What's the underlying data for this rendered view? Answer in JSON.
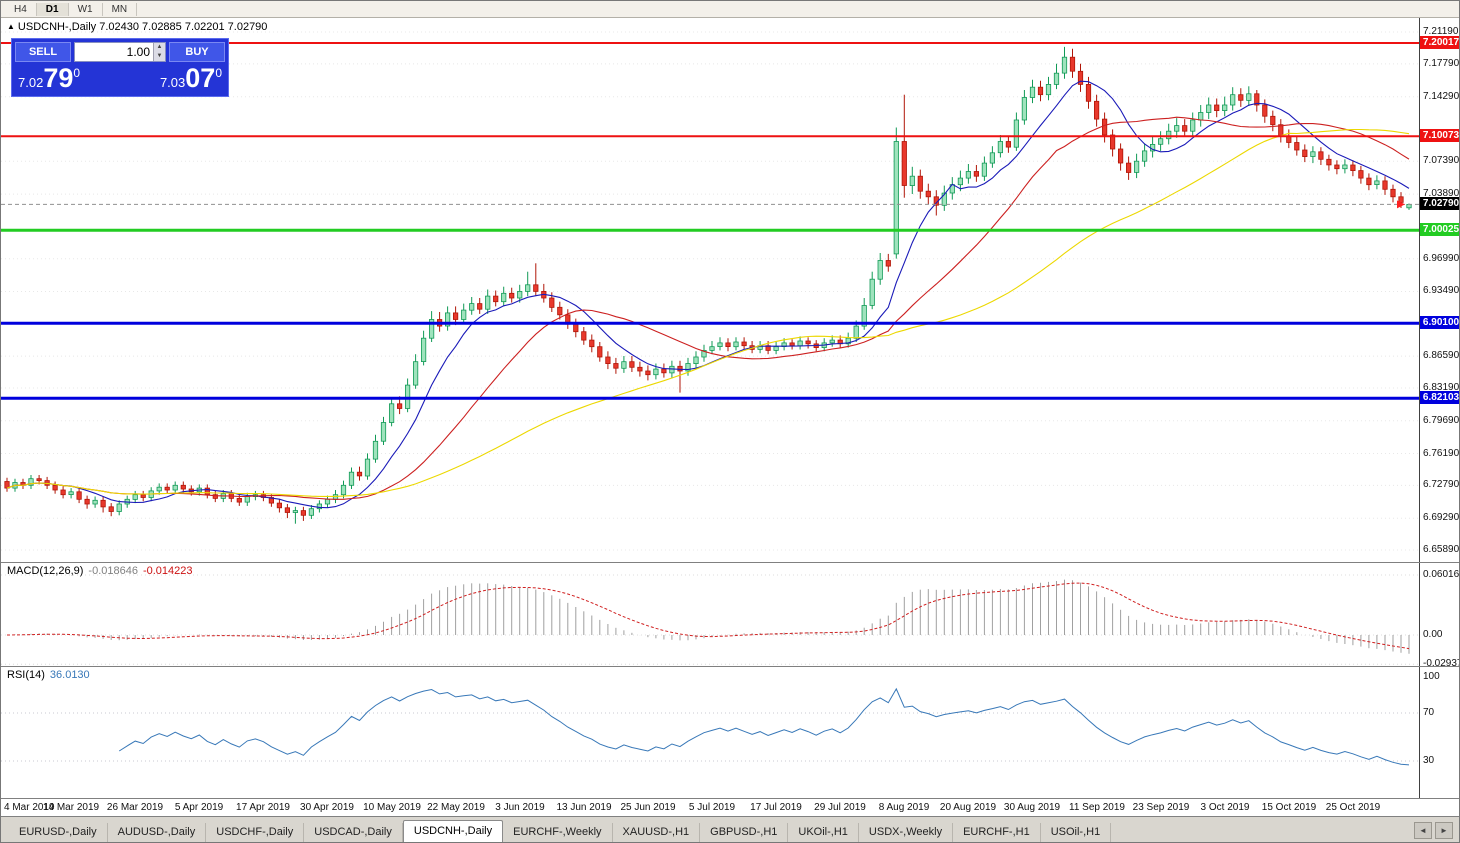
{
  "icons": {
    "symbol_arrow": "▲",
    "spinner_up": "▲",
    "spinner_down": "▼",
    "tab_scroll_left": "◄",
    "tab_scroll_right": "►"
  },
  "toolbar": {
    "timeframes": [
      "H4",
      "D1",
      "W1",
      "MN"
    ],
    "active_timeframe": "D1"
  },
  "chart": {
    "symbol_header": "USDCNH-,Daily 7.02430 7.02885 7.02201 7.02790",
    "ohlc": {
      "open": "7.02430",
      "high": "7.02885",
      "low": "7.02201",
      "close": "7.02790"
    }
  },
  "trade_panel": {
    "sell_label": "SELL",
    "buy_label": "BUY",
    "volume": "1.00",
    "sell_price": {
      "prefix": "7.02",
      "pips": "79",
      "frac": "0"
    },
    "buy_price": {
      "prefix": "7.03",
      "pips": "07",
      "frac": "0"
    }
  },
  "indicators": {
    "macd": {
      "header": "MACD(12,26,9)",
      "value1": "-0.018646",
      "value2": "-0.014223",
      "params": {
        "fast": 12,
        "slow": 26,
        "signal": 9
      },
      "axis": [
        {
          "label": "0.060161",
          "v": 0.060161
        },
        {
          "label": "0.00",
          "v": 0
        },
        {
          "label": "-0.029378",
          "v": -0.029378
        }
      ]
    },
    "rsi": {
      "header": "RSI(14)",
      "value": "36.0130",
      "period": 14,
      "axis": [
        {
          "label": "100",
          "v": 100
        },
        {
          "label": "70",
          "v": 70
        },
        {
          "label": "30",
          "v": 30
        }
      ]
    }
  },
  "price_axis": {
    "ticks": [
      {
        "label": "7.21190",
        "price": 7.2119
      },
      {
        "label": "7.17790",
        "price": 7.1779
      },
      {
        "label": "7.14290",
        "price": 7.1429
      },
      {
        "label": "7.07390",
        "price": 7.0739
      },
      {
        "label": "7.03890",
        "price": 7.0389
      },
      {
        "label": "6.96990",
        "price": 6.9699
      },
      {
        "label": "6.93490",
        "price": 6.9349
      },
      {
        "label": "6.86590",
        "price": 6.8659
      },
      {
        "label": "6.83190",
        "price": 6.8319
      },
      {
        "label": "6.79690",
        "price": 6.7969
      },
      {
        "label": "6.76190",
        "price": 6.7619
      },
      {
        "label": "6.72790",
        "price": 6.7279
      },
      {
        "label": "6.69290",
        "price": 6.6929
      },
      {
        "label": "6.65890",
        "price": 6.6589
      }
    ]
  },
  "hlines": [
    {
      "name": "resistance-7.20017",
      "label": "7.20017",
      "price": 7.20017,
      "color": "#ee1111",
      "width": 2
    },
    {
      "name": "resistance-7.10073",
      "label": "7.10073",
      "price": 7.10073,
      "color": "#ee1111",
      "width": 2
    },
    {
      "name": "support-7.00025",
      "label": "7.00025",
      "price": 7.00025,
      "color": "#22cc22",
      "width": 3
    },
    {
      "name": "support-6.90100",
      "label": "6.90100",
      "price": 6.901,
      "color": "#0000dd",
      "width": 3
    },
    {
      "name": "support-6.82103",
      "label": "6.82103",
      "price": 6.82103,
      "color": "#0000dd",
      "width": 3
    }
  ],
  "current_price": {
    "label": "7.02790",
    "price": 7.0279,
    "badge_bg": "#000000"
  },
  "colors": {
    "up_fill": "#9fe3bd",
    "up_stroke": "#119a56",
    "down_fill": "#e8382c",
    "down_stroke": "#b01608",
    "macd_hist": "#a0a0a0",
    "macd_signal": "#d02020",
    "rsi_line": "#3878b8",
    "grid": "#e8e8e8"
  },
  "tabs": {
    "active": "USDCNH-,Daily",
    "items": [
      "EURUSD-,Daily",
      "AUDUSD-,Daily",
      "USDCHF-,Daily",
      "USDCAD-,Daily",
      "USDCNH-,Daily",
      "EURCHF-,Weekly",
      "XAUUSD-,H1",
      "GBPUSD-,H1",
      "UKOil-,H1",
      "USDX-,Weekly",
      "EURCHF-,H1",
      "USOil-,H1"
    ]
  },
  "chart_data": {
    "type": "candlestick",
    "symbol": "USDCNH-",
    "timeframe": "Daily",
    "y_range": [
      6.6461,
      7.2269
    ],
    "x_label_every": 8,
    "x_labels": [
      "4 Mar 2019",
      "14 Mar 2019",
      "26 Mar 2019",
      "5 Apr 2019",
      "17 Apr 2019",
      "30 Apr 2019",
      "10 May 2019",
      "22 May 2019",
      "3 Jun 2019",
      "13 Jun 2019",
      "25 Jun 2019",
      "5 Jul 2019",
      "17 Jul 2019",
      "29 Jul 2019",
      "8 Aug 2019",
      "20 Aug 2019",
      "30 Aug 2019",
      "11 Sep 2019",
      "23 Sep 2019",
      "3 Oct 2019",
      "15 Oct 2019",
      "25 Oct 2019"
    ],
    "overlays": [
      {
        "name": "ma-fast",
        "type": "sma",
        "period": 8,
        "color": "#1a1ab8"
      },
      {
        "name": "ma-mid",
        "type": "sma",
        "period": 21,
        "color": "#cc2020"
      },
      {
        "name": "ma-slow",
        "type": "sma",
        "period": 50,
        "color": "#ecd800"
      }
    ],
    "candles": [
      [
        6.732,
        6.736,
        6.721,
        6.725
      ],
      [
        6.725,
        6.735,
        6.721,
        6.731
      ],
      [
        6.731,
        6.735,
        6.724,
        6.728
      ],
      [
        6.728,
        6.739,
        6.724,
        6.735
      ],
      [
        6.735,
        6.739,
        6.729,
        6.733
      ],
      [
        6.733,
        6.737,
        6.724,
        6.728
      ],
      [
        6.728,
        6.732,
        6.719,
        6.723
      ],
      [
        6.723,
        6.727,
        6.714,
        6.718
      ],
      [
        6.718,
        6.725,
        6.714,
        6.721
      ],
      [
        6.721,
        6.725,
        6.709,
        6.713
      ],
      [
        6.713,
        6.717,
        6.703,
        6.708
      ],
      [
        6.708,
        6.716,
        6.704,
        6.712
      ],
      [
        6.712,
        6.716,
        6.699,
        6.705
      ],
      [
        6.705,
        6.709,
        6.695,
        6.7
      ],
      [
        6.7,
        6.712,
        6.696,
        6.708
      ],
      [
        6.708,
        6.717,
        6.704,
        6.713
      ],
      [
        6.713,
        6.722,
        6.709,
        6.718
      ],
      [
        6.718,
        6.722,
        6.711,
        6.715
      ],
      [
        6.715,
        6.726,
        6.711,
        6.722
      ],
      [
        6.722,
        6.73,
        6.718,
        6.726
      ],
      [
        6.726,
        6.73,
        6.719,
        6.723
      ],
      [
        6.723,
        6.732,
        6.719,
        6.728
      ],
      [
        6.728,
        6.732,
        6.72,
        6.724
      ],
      [
        6.724,
        6.728,
        6.717,
        6.721
      ],
      [
        6.721,
        6.729,
        6.717,
        6.725
      ],
      [
        6.725,
        6.729,
        6.714,
        6.718
      ],
      [
        6.718,
        6.722,
        6.71,
        6.714
      ],
      [
        6.714,
        6.723,
        6.71,
        6.719
      ],
      [
        6.719,
        6.723,
        6.71,
        6.714
      ],
      [
        6.714,
        6.718,
        6.706,
        6.71
      ],
      [
        6.71,
        6.72,
        6.706,
        6.716
      ],
      [
        6.716,
        6.722,
        6.712,
        6.718
      ],
      [
        6.718,
        6.722,
        6.711,
        6.715
      ],
      [
        6.715,
        6.719,
        6.705,
        6.709
      ],
      [
        6.709,
        6.713,
        6.699,
        6.704
      ],
      [
        6.704,
        6.708,
        6.693,
        6.699
      ],
      [
        6.699,
        6.705,
        6.687,
        6.701
      ],
      [
        6.701,
        6.705,
        6.69,
        6.696
      ],
      [
        6.696,
        6.707,
        6.692,
        6.703
      ],
      [
        6.703,
        6.712,
        6.699,
        6.708
      ],
      [
        6.708,
        6.717,
        6.704,
        6.713
      ],
      [
        6.713,
        6.723,
        6.709,
        6.718
      ],
      [
        6.718,
        6.733,
        6.714,
        6.728
      ],
      [
        6.728,
        6.747,
        6.724,
        6.742
      ],
      [
        6.742,
        6.748,
        6.733,
        6.738
      ],
      [
        6.738,
        6.762,
        6.734,
        6.756
      ],
      [
        6.756,
        6.782,
        6.752,
        6.775
      ],
      [
        6.775,
        6.801,
        6.771,
        6.795
      ],
      [
        6.795,
        6.822,
        6.791,
        6.815
      ],
      [
        6.815,
        6.823,
        6.804,
        6.81
      ],
      [
        6.81,
        6.842,
        6.806,
        6.835
      ],
      [
        6.835,
        6.868,
        6.831,
        6.86
      ],
      [
        6.86,
        6.893,
        6.856,
        6.885
      ],
      [
        6.885,
        6.914,
        6.881,
        6.905
      ],
      [
        6.905,
        6.913,
        6.892,
        6.898
      ],
      [
        6.898,
        6.919,
        6.893,
        6.912
      ],
      [
        6.912,
        6.919,
        6.899,
        6.905
      ],
      [
        6.905,
        6.922,
        6.9,
        6.915
      ],
      [
        6.915,
        6.929,
        6.91,
        6.922
      ],
      [
        6.922,
        6.928,
        6.911,
        6.916
      ],
      [
        6.916,
        6.937,
        6.911,
        6.93
      ],
      [
        6.93,
        6.936,
        6.919,
        6.924
      ],
      [
        6.924,
        6.94,
        6.919,
        6.933
      ],
      [
        6.933,
        6.939,
        6.923,
        6.928
      ],
      [
        6.928,
        6.942,
        6.923,
        6.935
      ],
      [
        6.935,
        6.956,
        6.93,
        6.942
      ],
      [
        6.942,
        6.965,
        6.93,
        6.935
      ],
      [
        6.935,
        6.943,
        6.923,
        6.928
      ],
      [
        6.928,
        6.934,
        6.913,
        6.918
      ],
      [
        6.918,
        6.924,
        6.905,
        6.91
      ],
      [
        6.91,
        6.916,
        6.895,
        6.9
      ],
      [
        6.9,
        6.906,
        6.886,
        6.892
      ],
      [
        6.892,
        6.897,
        6.878,
        6.883
      ],
      [
        6.883,
        6.889,
        6.87,
        6.876
      ],
      [
        6.876,
        6.881,
        6.86,
        6.865
      ],
      [
        6.865,
        6.871,
        6.852,
        6.858
      ],
      [
        6.858,
        6.864,
        6.847,
        6.853
      ],
      [
        6.853,
        6.866,
        6.848,
        6.86
      ],
      [
        6.86,
        6.866,
        6.849,
        6.854
      ],
      [
        6.854,
        6.86,
        6.844,
        6.85
      ],
      [
        6.85,
        6.856,
        6.84,
        6.846
      ],
      [
        6.846,
        6.858,
        6.841,
        6.852
      ],
      [
        6.852,
        6.858,
        6.843,
        6.848
      ],
      [
        6.848,
        6.861,
        6.842,
        6.855
      ],
      [
        6.855,
        6.861,
        6.827,
        6.85
      ],
      [
        6.85,
        6.864,
        6.845,
        6.858
      ],
      [
        6.858,
        6.871,
        6.853,
        6.865
      ],
      [
        6.865,
        6.878,
        6.86,
        6.872
      ],
      [
        6.872,
        6.882,
        6.868,
        6.876
      ],
      [
        6.876,
        6.886,
        6.872,
        6.88
      ],
      [
        6.88,
        6.885,
        6.871,
        6.876
      ],
      [
        6.876,
        6.886,
        6.872,
        6.881
      ],
      [
        6.881,
        6.886,
        6.873,
        6.877
      ],
      [
        6.877,
        6.882,
        6.869,
        6.873
      ],
      [
        6.873,
        6.882,
        6.869,
        6.877
      ],
      [
        6.877,
        6.882,
        6.868,
        6.872
      ],
      [
        6.872,
        6.881,
        6.868,
        6.876
      ],
      [
        6.876,
        6.885,
        6.872,
        6.88
      ],
      [
        6.88,
        6.884,
        6.873,
        6.877
      ],
      [
        6.877,
        6.887,
        6.873,
        6.882
      ],
      [
        6.882,
        6.886,
        6.874,
        6.879
      ],
      [
        6.879,
        6.883,
        6.871,
        6.875
      ],
      [
        6.875,
        6.885,
        6.871,
        6.88
      ],
      [
        6.88,
        6.888,
        6.876,
        6.883
      ],
      [
        6.883,
        6.888,
        6.875,
        6.879
      ],
      [
        6.879,
        6.891,
        6.875,
        6.885
      ],
      [
        6.885,
        6.904,
        6.881,
        6.898
      ],
      [
        6.898,
        6.928,
        6.894,
        6.92
      ],
      [
        6.92,
        6.956,
        6.916,
        6.948
      ],
      [
        6.948,
        6.976,
        6.942,
        6.968
      ],
      [
        6.968,
        6.975,
        6.956,
        6.962
      ],
      [
        6.975,
        7.11,
        6.97,
        7.095
      ],
      [
        7.095,
        7.145,
        7.035,
        7.048
      ],
      [
        7.048,
        7.068,
        7.039,
        7.058
      ],
      [
        7.058,
        7.065,
        7.034,
        7.042
      ],
      [
        7.042,
        7.05,
        7.028,
        7.036
      ],
      [
        7.036,
        7.043,
        7.016,
        7.027
      ],
      [
        7.027,
        7.048,
        7.021,
        7.04
      ],
      [
        7.04,
        7.057,
        7.033,
        7.049
      ],
      [
        7.049,
        7.064,
        7.042,
        7.056
      ],
      [
        7.056,
        7.071,
        7.05,
        7.063
      ],
      [
        7.063,
        7.07,
        7.052,
        7.058
      ],
      [
        7.058,
        7.079,
        7.053,
        7.072
      ],
      [
        7.072,
        7.09,
        7.067,
        7.083
      ],
      [
        7.083,
        7.102,
        7.078,
        7.095
      ],
      [
        7.095,
        7.101,
        7.083,
        7.089
      ],
      [
        7.089,
        7.126,
        7.085,
        7.118
      ],
      [
        7.118,
        7.15,
        7.113,
        7.142
      ],
      [
        7.142,
        7.161,
        7.136,
        7.153
      ],
      [
        7.153,
        7.16,
        7.138,
        7.145
      ],
      [
        7.145,
        7.164,
        7.139,
        7.156
      ],
      [
        7.156,
        7.178,
        7.151,
        7.168
      ],
      [
        7.168,
        7.196,
        7.162,
        7.185
      ],
      [
        7.185,
        7.194,
        7.163,
        7.17
      ],
      [
        7.17,
        7.178,
        7.148,
        7.156
      ],
      [
        7.156,
        7.164,
        7.13,
        7.138
      ],
      [
        7.138,
        7.145,
        7.111,
        7.119
      ],
      [
        7.119,
        7.126,
        7.094,
        7.102
      ],
      [
        7.102,
        7.108,
        7.079,
        7.087
      ],
      [
        7.087,
        7.093,
        7.064,
        7.072
      ],
      [
        7.072,
        7.079,
        7.054,
        7.062
      ],
      [
        7.062,
        7.082,
        7.056,
        7.074
      ],
      [
        7.074,
        7.093,
        7.068,
        7.085
      ],
      [
        7.085,
        7.1,
        7.078,
        7.092
      ],
      [
        7.092,
        7.106,
        7.085,
        7.098
      ],
      [
        7.098,
        7.114,
        7.092,
        7.106
      ],
      [
        7.106,
        7.12,
        7.099,
        7.112
      ],
      [
        7.112,
        7.119,
        7.1,
        7.106
      ],
      [
        7.106,
        7.126,
        7.101,
        7.118
      ],
      [
        7.118,
        7.134,
        7.111,
        7.126
      ],
      [
        7.126,
        7.142,
        7.119,
        7.134
      ],
      [
        7.134,
        7.141,
        7.121,
        7.128
      ],
      [
        7.128,
        7.143,
        7.122,
        7.134
      ],
      [
        7.134,
        7.153,
        7.128,
        7.145
      ],
      [
        7.145,
        7.152,
        7.132,
        7.139
      ],
      [
        7.139,
        7.154,
        7.133,
        7.146
      ],
      [
        7.146,
        7.15,
        7.127,
        7.134
      ],
      [
        7.134,
        7.14,
        7.115,
        7.122
      ],
      [
        7.122,
        7.128,
        7.106,
        7.113
      ],
      [
        7.113,
        7.119,
        7.094,
        7.101
      ],
      [
        7.101,
        7.108,
        7.088,
        7.094
      ],
      [
        7.094,
        7.1,
        7.08,
        7.086
      ],
      [
        7.086,
        7.092,
        7.073,
        7.079
      ],
      [
        7.079,
        7.09,
        7.072,
        7.084
      ],
      [
        7.084,
        7.089,
        7.07,
        7.076
      ],
      [
        7.076,
        7.081,
        7.064,
        7.07
      ],
      [
        7.07,
        7.075,
        7.06,
        7.066
      ],
      [
        7.066,
        7.076,
        7.061,
        7.07
      ],
      [
        7.07,
        7.075,
        7.058,
        7.064
      ],
      [
        7.064,
        7.069,
        7.05,
        7.056
      ],
      [
        7.056,
        7.061,
        7.043,
        7.049
      ],
      [
        7.049,
        7.059,
        7.044,
        7.053
      ],
      [
        7.053,
        7.058,
        7.038,
        7.044
      ],
      [
        7.044,
        7.049,
        7.03,
        7.036
      ],
      [
        7.036,
        7.041,
        7.024,
        7.03
      ],
      [
        7.0243,
        7.0289,
        7.022,
        7.0279
      ]
    ]
  }
}
